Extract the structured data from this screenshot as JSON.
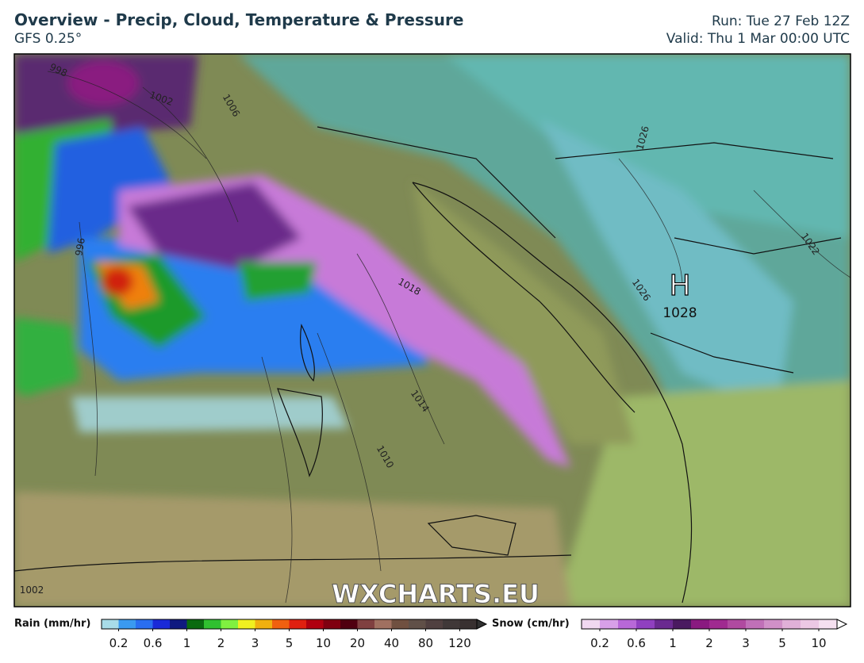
{
  "header": {
    "title": "Overview - Precip, Cloud, Temperature & Pressure",
    "model": "GFS 0.25°",
    "run": "Run: Tue 27 Feb 12Z",
    "valid": "Valid: Thu 1 Mar 00:00 UTC"
  },
  "map": {
    "watermark": "WXCHARTS.EU",
    "high_label": "H",
    "high_value": "1028",
    "isobar_labels": [
      "998",
      "1002",
      "1006",
      "996",
      "1018",
      "1014",
      "1010",
      "1026",
      "1026",
      "1022",
      "1002"
    ]
  },
  "rain_legend": {
    "title": "Rain (mm/hr)",
    "ticks": [
      "0.2",
      "0.6",
      "1",
      "2",
      "3",
      "5",
      "10",
      "20",
      "40",
      "80",
      "120"
    ]
  },
  "snow_legend": {
    "title": "Snow (cm/hr)",
    "ticks": [
      "0.2",
      "0.6",
      "1",
      "2",
      "3",
      "5",
      "10"
    ]
  }
}
